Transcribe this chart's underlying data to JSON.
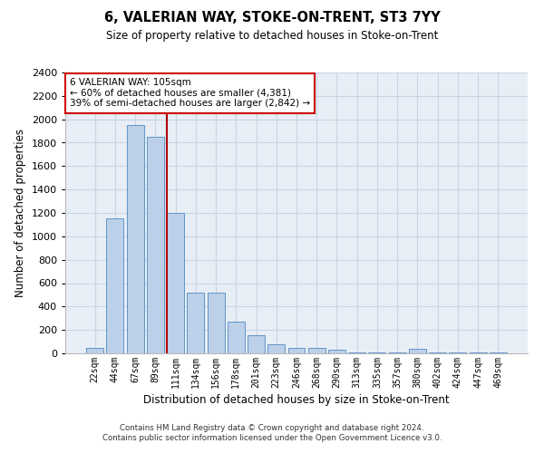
{
  "title": "6, VALERIAN WAY, STOKE-ON-TRENT, ST3 7YY",
  "subtitle": "Size of property relative to detached houses in Stoke-on-Trent",
  "xlabel": "Distribution of detached houses by size in Stoke-on-Trent",
  "ylabel": "Number of detached properties",
  "footer_line1": "Contains HM Land Registry data © Crown copyright and database right 2024.",
  "footer_line2": "Contains public sector information licensed under the Open Government Licence v3.0.",
  "annotation_title": "6 VALERIAN WAY: 105sqm",
  "annotation_line1": "← 60% of detached houses are smaller (4,381)",
  "annotation_line2": "39% of semi-detached houses are larger (2,842) →",
  "bar_labels": [
    "22sqm",
    "44sqm",
    "67sqm",
    "89sqm",
    "111sqm",
    "134sqm",
    "156sqm",
    "178sqm",
    "201sqm",
    "223sqm",
    "246sqm",
    "268sqm",
    "290sqm",
    "313sqm",
    "335sqm",
    "357sqm",
    "380sqm",
    "402sqm",
    "424sqm",
    "447sqm",
    "469sqm"
  ],
  "bar_values": [
    50,
    1150,
    1950,
    1850,
    1200,
    520,
    520,
    270,
    155,
    75,
    45,
    45,
    30,
    10,
    10,
    10,
    35,
    10,
    10,
    10,
    10
  ],
  "bar_color": "#bdd0e9",
  "bar_edge_color": "#6095c8",
  "vline_color": "#aa0000",
  "annotation_box_color": "#ffffff",
  "annotation_box_edge": "#cc0000",
  "ylim": [
    0,
    2400
  ],
  "yticks": [
    0,
    200,
    400,
    600,
    800,
    1000,
    1200,
    1400,
    1600,
    1800,
    2000,
    2200,
    2400
  ],
  "grid_color": "#c8d4e8",
  "background_color": "#e8eef5"
}
